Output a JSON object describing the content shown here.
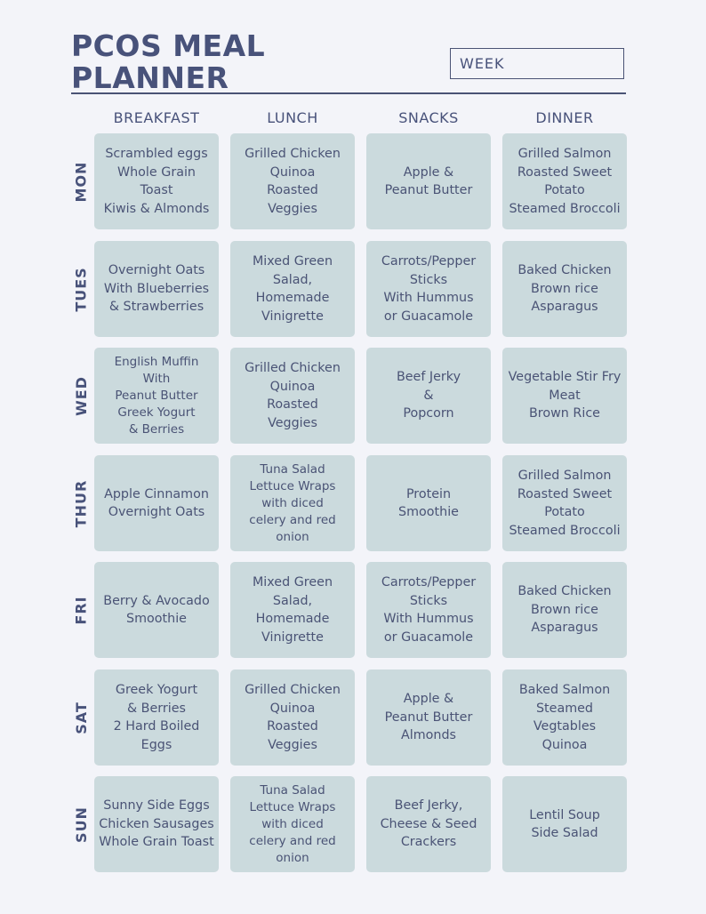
{
  "title": {
    "line1": "PCOS MEAL",
    "line2": "PLANNER"
  },
  "week_label": "WEEK",
  "columns": [
    "BREAKFAST",
    "LUNCH",
    "SNACKS",
    "DINNER"
  ],
  "days": [
    {
      "label": "MON",
      "meals": [
        "Scrambled eggs\nWhole Grain\nToast\nKiwis & Almonds",
        "Grilled Chicken\nQuinoa\nRoasted\nVeggies",
        "Apple &\nPeanut Butter",
        "Grilled Salmon\nRoasted Sweet\nPotato\nSteamed Broccoli"
      ]
    },
    {
      "label": "TUES",
      "meals": [
        "Overnight Oats\nWith Blueberries\n& Strawberries",
        "Mixed Green\nSalad,\nHomemade\nVinigrette",
        "Carrots/Pepper\nSticks\nWith Hummus\nor Guacamole",
        "Baked Chicken\nBrown rice\nAsparagus"
      ]
    },
    {
      "label": "WED",
      "meals": [
        "English Muffin\nWith\nPeanut Butter\nGreek Yogurt\n& Berries",
        "Grilled Chicken\nQuinoa\nRoasted\nVeggies",
        "Beef Jerky\n&\nPopcorn",
        "Vegetable Stir Fry\nMeat\nBrown Rice"
      ]
    },
    {
      "label": "THUR",
      "meals": [
        "Apple Cinnamon\nOvernight Oats",
        "Tuna Salad\nLettuce Wraps\nwith diced\ncelery and red\nonion",
        "Protein\nSmoothie",
        "Grilled Salmon\nRoasted Sweet\nPotato\nSteamed Broccoli"
      ]
    },
    {
      "label": "FRI",
      "meals": [
        "Berry & Avocado\nSmoothie",
        "Mixed Green\nSalad,\nHomemade\nVinigrette",
        "Carrots/Pepper\nSticks\nWith Hummus\nor Guacamole",
        "Baked Chicken\nBrown rice\nAsparagus"
      ]
    },
    {
      "label": "SAT",
      "meals": [
        "Greek Yogurt\n& Berries\n2 Hard Boiled Eggs",
        "Grilled Chicken\nQuinoa\nRoasted\nVeggies",
        "Apple &\nPeanut Butter\nAlmonds",
        "Baked Salmon\nSteamed\nVegtables\nQuinoa"
      ]
    },
    {
      "label": "SUN",
      "meals": [
        "Sunny Side Eggs\nChicken Sausages\nWhole Grain Toast",
        "Tuna Salad\nLettuce Wraps\nwith diced\ncelery and red\nonion",
        "Beef Jerky,\nCheese & Seed\nCrackers",
        "Lentil Soup\nSide Salad"
      ]
    }
  ]
}
